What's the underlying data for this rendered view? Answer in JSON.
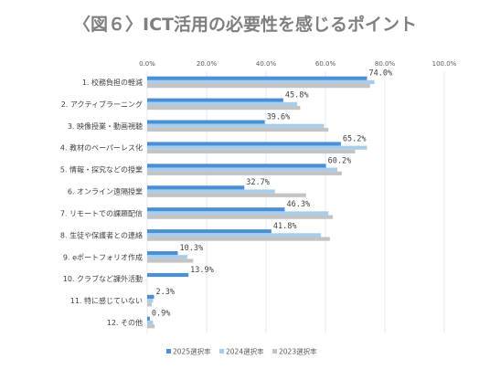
{
  "chart_data": {
    "type": "bar",
    "orientation": "horizontal",
    "title": "〈図６〉ICT活用の必要性を感じるポイント",
    "xlim": [
      0,
      100
    ],
    "x_ticks": [
      "0.0%",
      "20.0%",
      "40.0%",
      "60.0%",
      "80.0%",
      "100.0%"
    ],
    "grid": true,
    "legend_position": "bottom",
    "categories": [
      "1. 校務負担の軽減",
      "2. アクティブラーニング",
      "3. 映像授業・動画視聴",
      "4. 教材のペーパーレス化",
      "5. 情報・探究などの授業",
      "6. オンライン遠隔授業",
      "7. リモートでの課題配信",
      "8. 生徒や保護者との連絡",
      "9. eポートフォリオ作成",
      "10. クラブなど課外活動",
      "11. 特に感じていない",
      "12. その他"
    ],
    "series": [
      {
        "name": "2025選択率",
        "color": "#4a90d9",
        "values": [
          74.0,
          45.8,
          39.6,
          65.2,
          60.2,
          32.7,
          46.3,
          41.8,
          10.3,
          13.9,
          2.3,
          0.9
        ],
        "labels": [
          "74.0%",
          "45.8%",
          "39.6%",
          "65.2%",
          "60.2%",
          "32.7%",
          "46.3%",
          "41.8%",
          "10.3%",
          "13.9%",
          "2.3%",
          "0.9%"
        ]
      },
      {
        "name": "2024選択率",
        "color": "#a9cce9",
        "values": [
          76.5,
          50.5,
          59.5,
          74.0,
          64.0,
          43.0,
          61.0,
          58.5,
          13.5,
          0,
          2.0,
          2.0
        ]
      },
      {
        "name": "2023選択率",
        "color": "#c3c3c3",
        "values": [
          75.0,
          51.5,
          61.0,
          70.0,
          65.5,
          53.5,
          62.5,
          61.5,
          15.5,
          0,
          1.5,
          2.5
        ]
      }
    ]
  }
}
